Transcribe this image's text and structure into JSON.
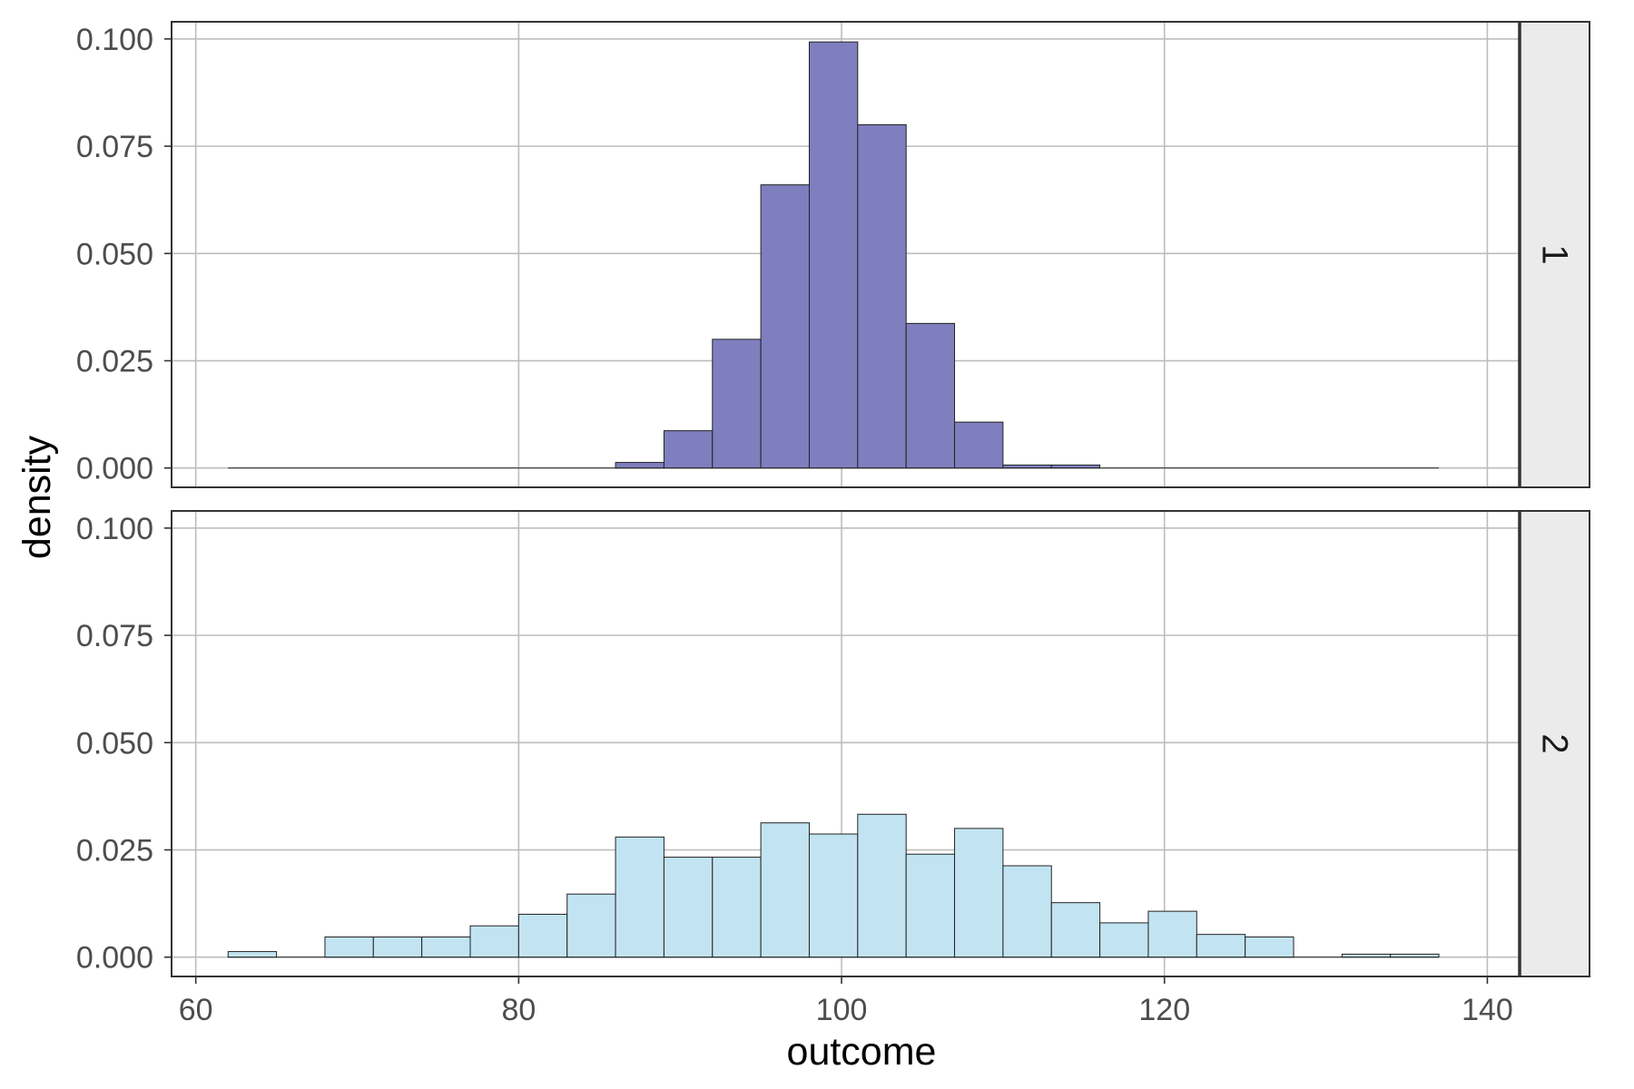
{
  "chart_data": {
    "type": "bar",
    "subtype": "faceted-histogram",
    "xlabel": "outcome",
    "ylabel": "density",
    "xlim": [
      58.5,
      142
    ],
    "ylim": [
      -0.0045,
      0.104
    ],
    "x_ticks": [
      60,
      80,
      100,
      120,
      140
    ],
    "x_tick_labels": [
      "60",
      "80",
      "100",
      "120",
      "140"
    ],
    "y_ticks": [
      0,
      0.025,
      0.05,
      0.075,
      0.1
    ],
    "y_tick_labels": [
      "0.000",
      "0.025",
      "0.050",
      "0.075",
      "0.100"
    ],
    "grid": true,
    "legend": "none",
    "bin_edges": [
      62.0,
      65.0,
      68.0,
      71.0,
      74.0,
      77.0,
      80.0,
      83.0,
      86.0,
      89.0,
      92.0,
      95.0,
      98.0,
      101.0,
      104.0,
      107.0,
      110.0,
      113.0,
      116.0,
      119.0,
      122.0,
      125.0,
      128.0,
      131.0,
      134.0,
      137.0
    ],
    "series": [
      {
        "name": "1",
        "color": "#7f7fbf",
        "values": [
          0,
          0,
          0,
          0,
          0,
          0,
          0,
          0,
          0.0013,
          0.0087,
          0.03,
          0.066,
          0.0993,
          0.08,
          0.0337,
          0.0107,
          0.0007,
          0.0007,
          0,
          0,
          0,
          0,
          0,
          0,
          0
        ]
      },
      {
        "name": "2",
        "color": "#c2e4f2",
        "values": [
          0.0013,
          0,
          0.0047,
          0.0047,
          0.0047,
          0.0073,
          0.01,
          0.0147,
          0.028,
          0.0233,
          0.0233,
          0.0313,
          0.0287,
          0.0333,
          0.024,
          0.03,
          0.0213,
          0.0127,
          0.008,
          0.0107,
          0.0053,
          0.0047,
          0,
          0.0007,
          0.0007
        ]
      }
    ]
  }
}
